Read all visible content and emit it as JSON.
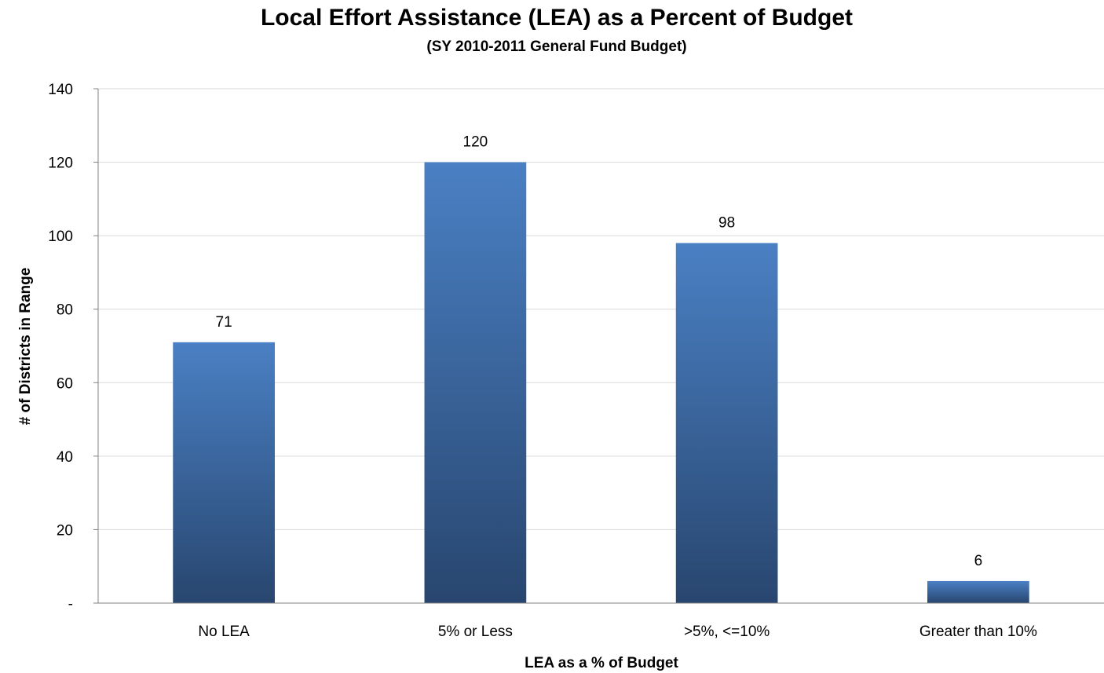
{
  "chart_data": {
    "type": "bar",
    "title": "Local Effort Assistance (LEA) as a Percent of Budget",
    "subtitle": "(SY 2010-2011 General Fund Budget)",
    "xlabel": "LEA as a % of Budget",
    "ylabel": "# of Districts in Range",
    "categories": [
      "No LEA",
      "5% or Less",
      ">5%, <=10%",
      "Greater than 10%"
    ],
    "values": [
      71,
      120,
      98,
      6
    ],
    "data_labels": [
      "71",
      "120",
      "98",
      "6"
    ],
    "ylim": [
      0,
      140
    ],
    "y_ticks": [
      0,
      20,
      40,
      60,
      80,
      100,
      120,
      140
    ],
    "y_tick_labels": [
      "-",
      "20",
      "40",
      "60",
      "80",
      "100",
      "120",
      "140"
    ],
    "grid": true,
    "legend": "none",
    "colors": {
      "bar_top": "#4a80c4",
      "bar_bottom": "#28466f",
      "grid": "#d9d9d9",
      "axis": "#808080"
    }
  }
}
